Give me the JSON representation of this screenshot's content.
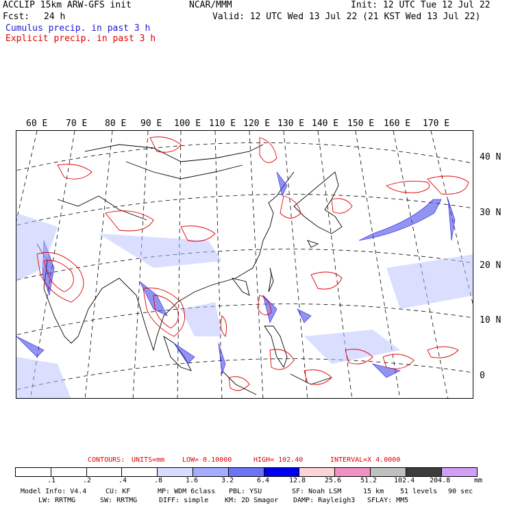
{
  "header": {
    "model": "ACCLIP 15km ARW-GFS init",
    "center": "NCAR/MMM",
    "init": "Init: 12 UTC Tue 12 Jul 22",
    "fcst_label": "Fcst:",
    "fcst_value": "24 h",
    "valid": "Valid: 12 UTC Wed 13 Jul 22 (21 KST Wed 13 Jul 22)",
    "legend_cumulus": "Cumulus precip. in past 3 h",
    "legend_explicit": "Explicit precip. in past 3 h"
  },
  "map": {
    "longitude_labels": [
      "60 E",
      "70 E",
      "80 E",
      "90 E",
      "100 E",
      "110 E",
      "120 E",
      "130 E",
      "140 E",
      "150 E",
      "160 E",
      "170 E"
    ],
    "latitude_labels": [
      "40 N",
      "30 N",
      "20 N",
      "10 N",
      "0"
    ],
    "colors": {
      "cumulus": "#2020e0",
      "explicit": "#e00000",
      "coast": "#000000",
      "grid": "#000000"
    }
  },
  "contours": {
    "title": "CONTOURS:",
    "units": "UNITS=mm",
    "low": "LOW= 0.10000",
    "high": "HIGH= 102.40",
    "interval": "INTERVAL=X 4.0000"
  },
  "colorbar": {
    "labels": [
      ".1",
      ".2",
      ".4",
      ".8",
      "1.6",
      "3.2",
      "6.4",
      "12.8",
      "25.6",
      "51.2",
      "102.4",
      "204.8"
    ],
    "unit": "mm",
    "colors": [
      "#ffffff",
      "#ffffff",
      "#ffffff",
      "#ffffff",
      "#d8dcff",
      "#a4acff",
      "#6c74f4",
      "#0000ee",
      "#fbd4d8",
      "#f290c2",
      "#c0c0c0",
      "#3c3c3c",
      "#cfa0f6"
    ]
  },
  "model_info": {
    "line1": [
      "Model Info: V4.4",
      "CU: KF",
      "MP: WDM 6class",
      "PBL: YSU",
      "SF: Noah LSM",
      "15 km",
      "51 levels",
      "90 sec"
    ],
    "line2": [
      "LW: RRTMG",
      "SW: RRTMG",
      "DIFF: simple",
      "KM: 2D Smagor",
      "DAMP: Rayleigh3",
      "SFLAY: MM5"
    ]
  }
}
